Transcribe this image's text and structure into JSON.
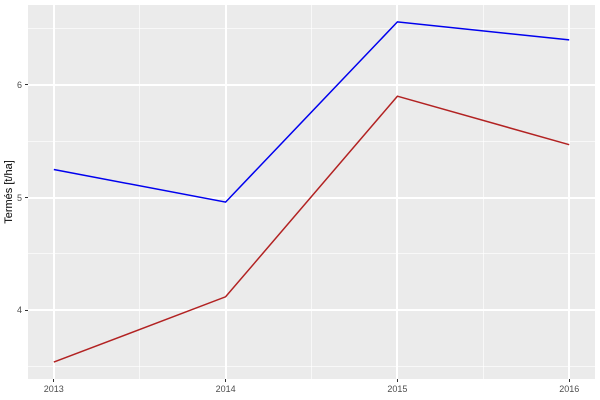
{
  "chart_data": {
    "type": "line",
    "title": "",
    "xlabel": "",
    "ylabel": "Termés [t/ha]",
    "x": [
      2013,
      2014,
      2015,
      2016
    ],
    "series": [
      {
        "name": "blue-series",
        "color": "#0000EE",
        "values": [
          5.25,
          4.96,
          6.56,
          6.4
        ]
      },
      {
        "name": "red-series",
        "color": "#B22222",
        "values": [
          3.54,
          4.12,
          5.9,
          5.47
        ]
      }
    ],
    "xlim": [
      2012.85,
      2016.15
    ],
    "ylim": [
      3.39,
      6.71
    ],
    "x_major_ticks": [
      "2013",
      "2014",
      "2015",
      "2016"
    ],
    "x_major_tick_values": [
      2013,
      2014,
      2015,
      2016
    ],
    "x_minor_gridlines": [
      2013.5,
      2014.5,
      2015.5
    ],
    "y_major_ticks": [
      "4",
      "5",
      "6"
    ],
    "y_major_tick_values": [
      4,
      5,
      6
    ],
    "y_minor_gridlines": [
      3.5,
      4.5,
      5.5,
      6.5
    ],
    "grid": "on",
    "legend": "none",
    "panel_bg": "#EBEBEB",
    "grid_color": "#FFFFFF",
    "tick_color": "#333333",
    "tick_label_color": "#4D4D4D",
    "axis_title_color": "#000000"
  }
}
